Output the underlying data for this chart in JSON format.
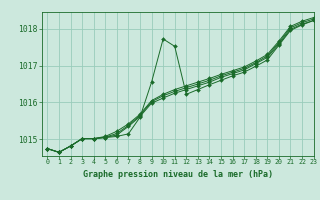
{
  "title": "Graphe pression niveau de la mer (hPa)",
  "background_color": "#cce8dd",
  "grid_color": "#99ccbb",
  "line_color": "#1a6b2a",
  "marker_color": "#1a6b2a",
  "xlim": [
    -0.5,
    23
  ],
  "ylim": [
    1014.55,
    1018.45
  ],
  "yticks": [
    1015,
    1016,
    1017,
    1018
  ],
  "xticks": [
    0,
    1,
    2,
    3,
    4,
    5,
    6,
    7,
    8,
    9,
    10,
    11,
    12,
    13,
    14,
    15,
    16,
    17,
    18,
    19,
    20,
    21,
    22,
    23
  ],
  "series": [
    [
      1014.75,
      1014.65,
      1014.82,
      1015.02,
      1015.02,
      1015.05,
      1015.08,
      1015.15,
      1015.6,
      1016.55,
      1017.72,
      1017.52,
      1016.22,
      1016.35,
      1016.48,
      1016.6,
      1016.72,
      1016.82,
      1016.98,
      1017.15,
      1017.55,
      1017.95,
      1018.1,
      1018.22
    ],
    [
      1014.75,
      1014.65,
      1014.82,
      1015.02,
      1015.02,
      1015.05,
      1015.12,
      1015.35,
      1015.62,
      1015.98,
      1016.12,
      1016.25,
      1016.35,
      1016.45,
      1016.55,
      1016.68,
      1016.78,
      1016.88,
      1017.05,
      1017.22,
      1017.58,
      1017.98,
      1018.12,
      1018.22
    ],
    [
      1014.75,
      1014.65,
      1014.82,
      1015.02,
      1015.02,
      1015.06,
      1015.16,
      1015.38,
      1015.65,
      1016.02,
      1016.18,
      1016.3,
      1016.4,
      1016.5,
      1016.6,
      1016.72,
      1016.82,
      1016.92,
      1017.08,
      1017.26,
      1017.62,
      1018.02,
      1018.16,
      1018.26
    ],
    [
      1014.75,
      1014.65,
      1014.82,
      1015.02,
      1015.02,
      1015.08,
      1015.22,
      1015.42,
      1015.68,
      1016.05,
      1016.22,
      1016.35,
      1016.45,
      1016.55,
      1016.65,
      1016.76,
      1016.86,
      1016.96,
      1017.12,
      1017.3,
      1017.66,
      1018.06,
      1018.2,
      1018.3
    ]
  ]
}
